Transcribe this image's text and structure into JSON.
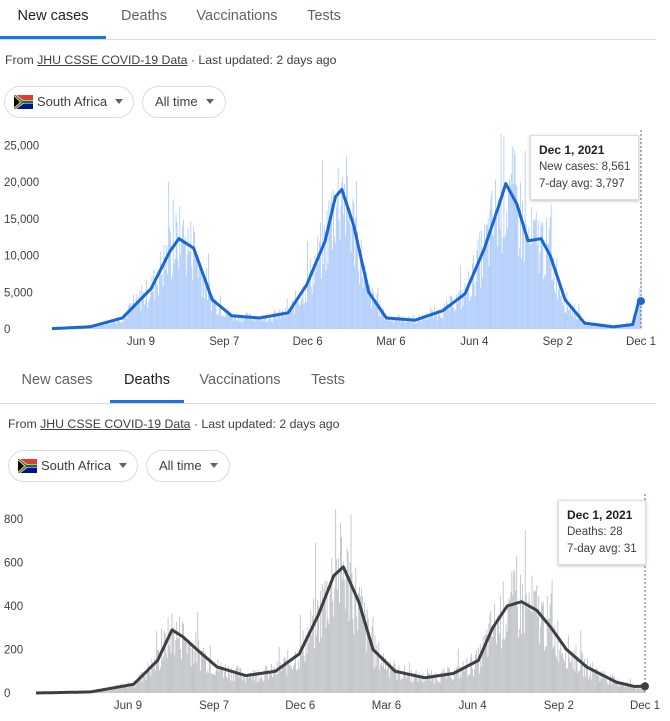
{
  "panels": [
    {
      "tabs": [
        {
          "label": "New cases",
          "active": true
        },
        {
          "label": "Deaths",
          "active": false
        },
        {
          "label": "Vaccinations",
          "active": false
        },
        {
          "label": "Tests",
          "active": false
        }
      ],
      "source_prefix": "From ",
      "source_link": "JHU CSSE COVID-19 Data",
      "source_suffix": " · Last updated: 2 days ago",
      "location": "South Africa",
      "range": "All time",
      "tooltip": {
        "date": "Dec 1, 2021",
        "line1": "New cases: 8,561",
        "line2": "7-day avg: 3,797"
      },
      "colors": {
        "bars": "#aecbfa",
        "line": "#1967d2",
        "tab_underline": "#1a73e8"
      }
    },
    {
      "tabs": [
        {
          "label": "New cases",
          "active": false
        },
        {
          "label": "Deaths",
          "active": true
        },
        {
          "label": "Vaccinations",
          "active": false
        },
        {
          "label": "Tests",
          "active": false
        }
      ],
      "source_prefix": "From ",
      "source_link": "JHU CSSE COVID-19 Data",
      "source_suffix": " · Last updated: 2 days ago",
      "location": "South Africa",
      "range": "All time",
      "tooltip": {
        "date": "Dec 1, 2021",
        "line1": "Deaths: 28",
        "line2": "7-day avg: 31"
      },
      "colors": {
        "bars": "#bdc1c6",
        "line": "#3c4043",
        "tab_underline": "#1a73e8"
      }
    }
  ],
  "chart_data": [
    {
      "type": "bar",
      "title": "South Africa new cases",
      "x_range": [
        "2020-03-05",
        "2021-12-01"
      ],
      "x_ticks": [
        "Jun 9",
        "Sep 7",
        "Dec 6",
        "Mar 6",
        "Jun 4",
        "Sep 2",
        "Dec 1"
      ],
      "y_ticks": [
        "0",
        "5,000",
        "10,000",
        "15,000",
        "20,000",
        "25,000"
      ],
      "ylim": [
        0,
        26000
      ],
      "series": [
        {
          "name": "7-day avg",
          "type": "line",
          "x": [
            "2020-03-05",
            "2020-04-15",
            "2020-05-20",
            "2020-06-20",
            "2020-07-10",
            "2020-07-20",
            "2020-08-05",
            "2020-08-25",
            "2020-09-15",
            "2020-10-15",
            "2020-11-15",
            "2020-12-05",
            "2020-12-25",
            "2021-01-05",
            "2021-01-12",
            "2021-01-25",
            "2021-02-10",
            "2021-03-01",
            "2021-04-01",
            "2021-05-01",
            "2021-05-25",
            "2021-06-15",
            "2021-07-01",
            "2021-07-08",
            "2021-07-20",
            "2021-08-01",
            "2021-08-15",
            "2021-08-25",
            "2021-09-10",
            "2021-10-01",
            "2021-11-01",
            "2021-11-22",
            "2021-11-26",
            "2021-11-29",
            "2021-12-01"
          ],
          "values": [
            50,
            300,
            1500,
            5500,
            10500,
            12300,
            11000,
            4000,
            1800,
            1500,
            2200,
            6000,
            12000,
            18000,
            19000,
            14000,
            5000,
            1500,
            1200,
            2500,
            4800,
            11000,
            17000,
            19800,
            17000,
            12000,
            12300,
            10000,
            4000,
            800,
            300,
            600,
            2500,
            4000,
            3797
          ]
        },
        {
          "name": "New cases",
          "type": "bar",
          "note": "daily values estimated; envelope ~1.2× average with spikes",
          "peaks": [
            {
              "x": "2020-07-24",
              "value": 13944
            },
            {
              "x": "2021-01-08",
              "value": 21980
            },
            {
              "x": "2021-07-03",
              "value": 26485
            },
            {
              "x": "2021-12-01",
              "value": 8561
            }
          ]
        }
      ]
    },
    {
      "type": "bar",
      "title": "South Africa deaths",
      "x_range": [
        "2020-03-05",
        "2021-12-01"
      ],
      "x_ticks": [
        "Jun 9",
        "Sep 7",
        "Dec 6",
        "Mar 6",
        "Jun 4",
        "Sep 2",
        "Dec 1"
      ],
      "y_ticks": [
        "0",
        "200",
        "400",
        "600",
        "800"
      ],
      "ylim": [
        0,
        860
      ],
      "series": [
        {
          "name": "7-day avg",
          "type": "line",
          "x": [
            "2020-03-05",
            "2020-05-01",
            "2020-06-15",
            "2020-07-10",
            "2020-07-25",
            "2020-08-05",
            "2020-08-20",
            "2020-09-10",
            "2020-10-10",
            "2020-11-10",
            "2020-12-05",
            "2020-12-25",
            "2021-01-10",
            "2021-01-20",
            "2021-02-05",
            "2021-02-20",
            "2021-03-15",
            "2021-04-15",
            "2021-05-15",
            "2021-06-10",
            "2021-06-25",
            "2021-07-10",
            "2021-07-25",
            "2021-08-10",
            "2021-08-25",
            "2021-09-10",
            "2021-10-01",
            "2021-11-01",
            "2021-11-20",
            "2021-12-01"
          ],
          "values": [
            0,
            5,
            40,
            150,
            290,
            260,
            200,
            120,
            80,
            100,
            180,
            360,
            540,
            580,
            420,
            200,
            100,
            70,
            90,
            150,
            300,
            400,
            420,
            380,
            300,
            200,
            120,
            50,
            30,
            31
          ]
        },
        {
          "name": "Deaths",
          "type": "bar",
          "note": "daily values estimated; envelope ~1.2× average with spikes",
          "peaks": [
            {
              "x": "2021-01-12",
              "value": 844
            },
            {
              "x": "2021-07-20",
              "value": 630
            },
            {
              "x": "2021-12-01",
              "value": 28
            }
          ]
        }
      ]
    }
  ]
}
